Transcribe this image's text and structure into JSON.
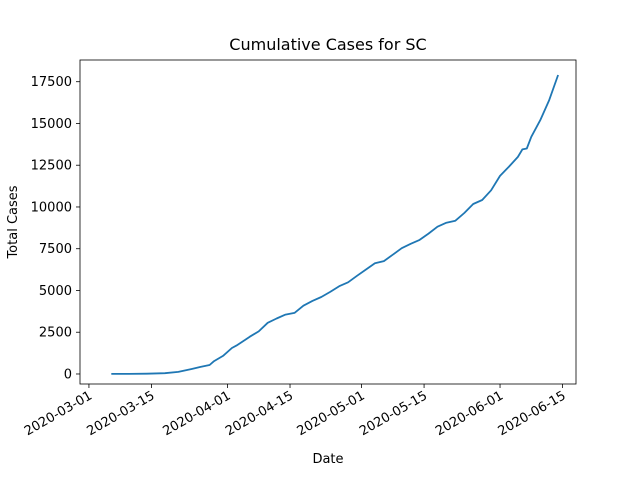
{
  "chart_data": {
    "type": "line",
    "title": "Cumulative Cases for SC",
    "xlabel": "Date",
    "ylabel": "Total Cases",
    "xlim": [
      "2020-02-28",
      "2020-06-18"
    ],
    "ylim": [
      -600,
      18800
    ],
    "x_ticks": [
      "2020-03-01",
      "2020-03-15",
      "2020-04-01",
      "2020-04-15",
      "2020-05-01",
      "2020-05-15",
      "2020-06-01",
      "2020-06-15"
    ],
    "y_ticks": [
      0,
      2500,
      5000,
      7500,
      10000,
      12500,
      15000,
      17500
    ],
    "y_tick_labels": [
      "0",
      "2500",
      "5000",
      "7500",
      "10000",
      "12500",
      "15000",
      "17500"
    ],
    "grid": false,
    "series": [
      {
        "color": "#1f77b4",
        "points": [
          [
            "2020-03-06",
            2
          ],
          [
            "2020-03-10",
            7
          ],
          [
            "2020-03-14",
            19
          ],
          [
            "2020-03-18",
            47
          ],
          [
            "2020-03-21",
            125
          ],
          [
            "2020-03-24",
            298
          ],
          [
            "2020-03-26",
            424
          ],
          [
            "2020-03-28",
            539
          ],
          [
            "2020-03-29",
            774
          ],
          [
            "2020-03-31",
            1083
          ],
          [
            "2020-04-02",
            1554
          ],
          [
            "2020-04-03",
            1700
          ],
          [
            "2020-04-05",
            2049
          ],
          [
            "2020-04-06",
            2232
          ],
          [
            "2020-04-08",
            2552
          ],
          [
            "2020-04-10",
            3065
          ],
          [
            "2020-04-12",
            3319
          ],
          [
            "2020-04-14",
            3553
          ],
          [
            "2020-04-16",
            3656
          ],
          [
            "2020-04-18",
            4086
          ],
          [
            "2020-04-20",
            4377
          ],
          [
            "2020-04-22",
            4608
          ],
          [
            "2020-04-24",
            4917
          ],
          [
            "2020-04-26",
            5253
          ],
          [
            "2020-04-28",
            5490
          ],
          [
            "2020-04-30",
            5881
          ],
          [
            "2020-05-02",
            6258
          ],
          [
            "2020-05-04",
            6626
          ],
          [
            "2020-05-06",
            6757
          ],
          [
            "2020-05-08",
            7142
          ],
          [
            "2020-05-10",
            7531
          ],
          [
            "2020-05-12",
            7792
          ],
          [
            "2020-05-14",
            8030
          ],
          [
            "2020-05-16",
            8407
          ],
          [
            "2020-05-18",
            8816
          ],
          [
            "2020-05-20",
            9056
          ],
          [
            "2020-05-22",
            9175
          ],
          [
            "2020-05-24",
            9638
          ],
          [
            "2020-05-26",
            10178
          ],
          [
            "2020-05-28",
            10416
          ],
          [
            "2020-05-30",
            11000
          ],
          [
            "2020-06-01",
            11861
          ],
          [
            "2020-06-03",
            12415
          ],
          [
            "2020-06-05",
            13000
          ],
          [
            "2020-06-06",
            13450
          ],
          [
            "2020-06-07",
            13500
          ],
          [
            "2020-06-08",
            14200
          ],
          [
            "2020-06-10",
            15200
          ],
          [
            "2020-06-12",
            16400
          ],
          [
            "2020-06-14",
            17900
          ]
        ]
      }
    ]
  }
}
